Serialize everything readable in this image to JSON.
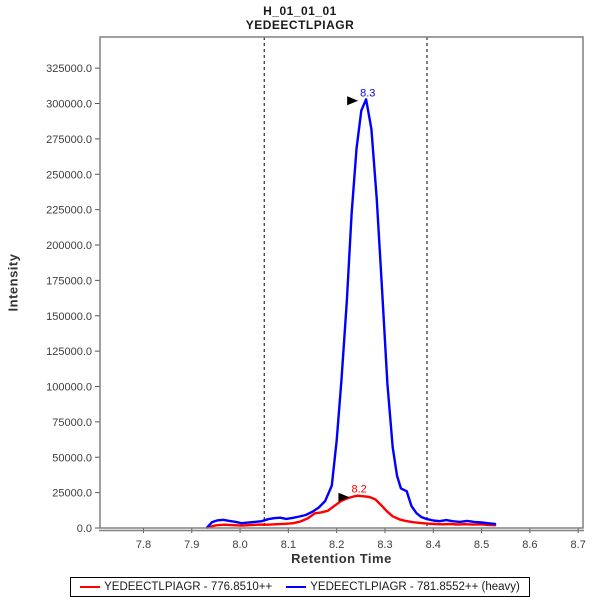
{
  "title": {
    "line1": "H_01_01_01",
    "line2": "YEDEECTLPIAGR"
  },
  "chart_data": {
    "type": "line",
    "title": "H_01_01_01 / YEDEECTLPIAGR",
    "xlabel": "Retention Time",
    "ylabel": "Intensity",
    "x_range": [
      7.71,
      8.71
    ],
    "y_range": [
      0,
      347000
    ],
    "x_ticks": [
      7.8,
      7.9,
      8.0,
      8.1,
      8.2,
      8.3,
      8.4,
      8.5,
      8.6,
      8.7
    ],
    "y_ticks": [
      0,
      25000,
      50000,
      75000,
      100000,
      125000,
      150000,
      175000,
      200000,
      225000,
      250000,
      275000,
      300000,
      325000
    ],
    "grid": false,
    "legend_position": "bottom",
    "frame_color": "#808080",
    "tick_color": "#555555",
    "tick_label_color": "#3c3c3c",
    "boundaries": {
      "values": [
        8.05,
        8.387
      ],
      "color": "#000000",
      "style": "dashed"
    },
    "series": [
      {
        "name": "YEDEECTLPIAGR - 776.8510++",
        "color": "#ff0000",
        "annotation": {
          "label": "8.2",
          "rt": 8.243,
          "intensity": 22800
        },
        "points": [
          [
            7.932,
            300
          ],
          [
            7.95,
            1900
          ],
          [
            7.968,
            2300
          ],
          [
            7.986,
            2000
          ],
          [
            8.004,
            1700
          ],
          [
            8.022,
            2100
          ],
          [
            8.04,
            2400
          ],
          [
            8.058,
            2300
          ],
          [
            8.076,
            2700
          ],
          [
            8.094,
            3000
          ],
          [
            8.11,
            3400
          ],
          [
            8.125,
            4600
          ],
          [
            8.14,
            6800
          ],
          [
            8.155,
            10400
          ],
          [
            8.168,
            11000
          ],
          [
            8.182,
            12200
          ],
          [
            8.196,
            15800
          ],
          [
            8.21,
            19200
          ],
          [
            8.224,
            21200
          ],
          [
            8.236,
            22300
          ],
          [
            8.243,
            22800
          ],
          [
            8.256,
            22400
          ],
          [
            8.268,
            21900
          ],
          [
            8.28,
            20200
          ],
          [
            8.292,
            16200
          ],
          [
            8.304,
            11800
          ],
          [
            8.316,
            8300
          ],
          [
            8.33,
            6100
          ],
          [
            8.344,
            4900
          ],
          [
            8.358,
            4100
          ],
          [
            8.372,
            3600
          ],
          [
            8.387,
            3100
          ],
          [
            8.403,
            2800
          ],
          [
            8.419,
            2600
          ],
          [
            8.435,
            2800
          ],
          [
            8.45,
            2500
          ],
          [
            8.466,
            2700
          ],
          [
            8.482,
            2400
          ],
          [
            8.498,
            2600
          ],
          [
            8.513,
            2200
          ],
          [
            8.528,
            2000
          ]
        ]
      },
      {
        "name": "YEDEECTLPIAGR - 781.8552++ (heavy)",
        "color": "#0000ff",
        "annotation": {
          "label": "8.3",
          "rt": 8.261,
          "intensity": 303000
        },
        "points": [
          [
            7.932,
            400
          ],
          [
            7.942,
            4200
          ],
          [
            7.953,
            5400
          ],
          [
            7.965,
            5800
          ],
          [
            7.978,
            5000
          ],
          [
            7.99,
            4400
          ],
          [
            8.003,
            3400
          ],
          [
            8.016,
            3800
          ],
          [
            8.03,
            4300
          ],
          [
            8.045,
            4800
          ],
          [
            8.058,
            6200
          ],
          [
            8.07,
            6900
          ],
          [
            8.083,
            7300
          ],
          [
            8.096,
            6400
          ],
          [
            8.11,
            7200
          ],
          [
            8.123,
            8100
          ],
          [
            8.136,
            9200
          ],
          [
            8.15,
            11500
          ],
          [
            8.163,
            14500
          ],
          [
            8.176,
            19000
          ],
          [
            8.19,
            30000
          ],
          [
            8.2,
            62000
          ],
          [
            8.21,
            105000
          ],
          [
            8.221,
            160000
          ],
          [
            8.231,
            222000
          ],
          [
            8.241,
            268000
          ],
          [
            8.251,
            295000
          ],
          [
            8.261,
            303000
          ],
          [
            8.272,
            282000
          ],
          [
            8.283,
            232000
          ],
          [
            8.294,
            168000
          ],
          [
            8.305,
            102000
          ],
          [
            8.316,
            57000
          ],
          [
            8.325,
            37000
          ],
          [
            8.333,
            28000
          ],
          [
            8.345,
            26000
          ],
          [
            8.355,
            15500
          ],
          [
            8.365,
            10500
          ],
          [
            8.375,
            7800
          ],
          [
            8.387,
            6300
          ],
          [
            8.4,
            5300
          ],
          [
            8.413,
            4800
          ],
          [
            8.427,
            5600
          ],
          [
            8.44,
            4800
          ],
          [
            8.455,
            4300
          ],
          [
            8.47,
            5000
          ],
          [
            8.485,
            4300
          ],
          [
            8.5,
            3900
          ],
          [
            8.515,
            3300
          ],
          [
            8.528,
            2900
          ]
        ]
      }
    ]
  },
  "legend": {
    "items": [
      {
        "label": "YEDEECTLPIAGR - 776.8510++",
        "color": "#ff0000"
      },
      {
        "label": "YEDEECTLPIAGR - 781.8552++ (heavy)",
        "color": "#0000ff"
      }
    ]
  }
}
